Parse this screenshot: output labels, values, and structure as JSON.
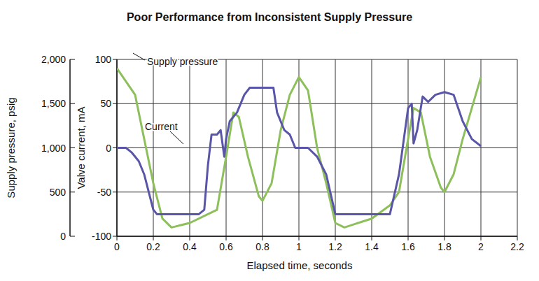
{
  "chart_data": {
    "type": "line",
    "title": "Poor Performance from Inconsistent Supply Pressure",
    "x_label": "Elapsed time, seconds",
    "y_label": "Valve current, mA",
    "y2_label": "Supply pressure, psig",
    "xlim": [
      0,
      2.2
    ],
    "xticks": [
      0,
      0.2,
      0.4,
      0.6,
      0.8,
      1,
      1.2,
      1.4,
      1.6,
      1.8,
      2,
      2.2
    ],
    "ylim": [
      -100,
      100
    ],
    "yticks": [
      -100,
      -50,
      0,
      50,
      100
    ],
    "y2lim": [
      0,
      2000
    ],
    "y2ticks": [
      0,
      500,
      {
        "value": 1000,
        "label": "1,000"
      },
      {
        "value": 1500,
        "label": "1,500"
      },
      {
        "value": 2000,
        "label": "2,000"
      }
    ],
    "grid": true,
    "series": [
      {
        "name": "Supply pressure",
        "color": "#8dbf5b",
        "axis": "y2",
        "x": [
          0,
          0.05,
          0.1,
          0.15,
          0.2,
          0.25,
          0.3,
          0.4,
          0.5,
          0.55,
          0.6,
          0.64,
          0.67,
          0.72,
          0.78,
          0.8,
          0.85,
          0.9,
          0.95,
          1.0,
          1.05,
          1.1,
          1.15,
          1.2,
          1.25,
          1.4,
          1.5,
          1.55,
          1.6,
          1.63,
          1.67,
          1.72,
          1.78,
          1.8,
          1.85,
          1.9,
          1.95,
          2.0
        ],
        "values": [
          1900,
          1750,
          1600,
          1100,
          600,
          200,
          100,
          150,
          250,
          300,
          900,
          1400,
          1350,
          900,
          450,
          400,
          600,
          1200,
          1600,
          1800,
          1650,
          1000,
          600,
          150,
          100,
          200,
          350,
          500,
          1100,
          1450,
          1400,
          900,
          550,
          500,
          700,
          1100,
          1450,
          1800
        ]
      },
      {
        "name": "Current",
        "color": "#5955a8",
        "x": [
          0,
          0.05,
          0.08,
          0.12,
          0.15,
          0.2,
          0.22,
          0.3,
          0.4,
          0.45,
          0.48,
          0.5,
          0.52,
          0.55,
          0.57,
          0.59,
          0.6,
          0.62,
          0.66,
          0.7,
          0.73,
          0.78,
          0.86,
          0.88,
          0.92,
          0.95,
          0.98,
          1.05,
          1.1,
          1.15,
          1.2,
          1.3,
          1.4,
          1.5,
          1.55,
          1.6,
          1.62,
          1.63,
          1.65,
          1.68,
          1.71,
          1.75,
          1.8,
          1.85,
          1.9,
          1.95,
          2.0
        ],
        "values": [
          0,
          0,
          -5,
          -15,
          -30,
          -70,
          -75,
          -75,
          -75,
          -75,
          -70,
          -20,
          15,
          15,
          20,
          -10,
          10,
          30,
          40,
          60,
          68,
          68,
          68,
          40,
          20,
          15,
          0,
          0,
          -10,
          -30,
          -75,
          -75,
          -75,
          -75,
          -30,
          45,
          50,
          5,
          20,
          58,
          52,
          60,
          63,
          60,
          30,
          10,
          2
        ]
      }
    ]
  }
}
